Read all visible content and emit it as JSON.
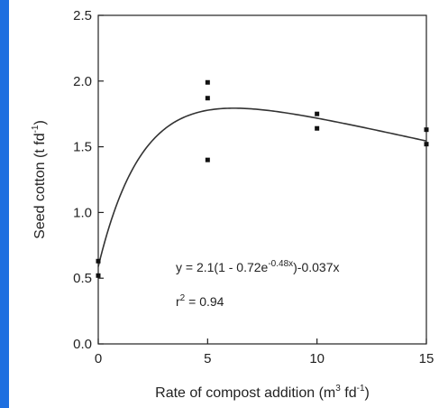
{
  "colors": {
    "left_bar": "#1e6fe0",
    "ink": "#222222",
    "background": "#ffffff"
  },
  "chart_data": {
    "type": "scatter",
    "xlabel": {
      "pre": "Rate of compost addition (m",
      "sup1": "3",
      "mid": " fd",
      "sup2": "-1",
      "post": ")"
    },
    "ylabel": {
      "pre": "Seed cotton (t fd",
      "sup": "-1",
      "post": ")"
    },
    "xlim": [
      0,
      15
    ],
    "ylim": [
      0.0,
      2.5
    ],
    "xticks": [
      "0",
      "5",
      "10",
      "15"
    ],
    "yticks": [
      "0.0",
      "0.5",
      "1.0",
      "1.5",
      "2.0",
      "2.5"
    ],
    "grid": false,
    "points": [
      {
        "x": 0,
        "y": 0.63
      },
      {
        "x": 0,
        "y": 0.52
      },
      {
        "x": 5,
        "y": 1.99
      },
      {
        "x": 5,
        "y": 1.87
      },
      {
        "x": 5,
        "y": 1.4
      },
      {
        "x": 10,
        "y": 1.75
      },
      {
        "x": 10,
        "y": 1.64
      },
      {
        "x": 15,
        "y": 1.63
      },
      {
        "x": 15,
        "y": 1.52
      }
    ],
    "fit": {
      "a": 2.1,
      "b": 0.72,
      "k": 0.48,
      "c": 0.037
    },
    "equation": {
      "pre": "y = 2.1(1 - 0.72e",
      "sup": "-0.48x",
      "post": ")-0.037x"
    },
    "r2": {
      "pre": "r",
      "sup": "2",
      "post": " = 0.94"
    }
  }
}
